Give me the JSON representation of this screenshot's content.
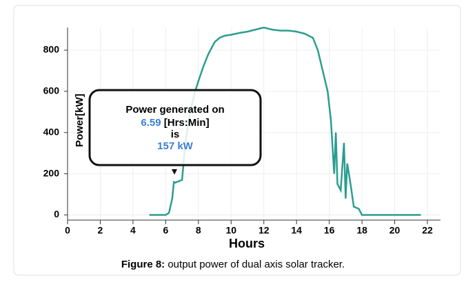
{
  "chart_data": {
    "type": "line",
    "x_label": "Hours",
    "y_label": "Power[kW]",
    "caption_bold": "Figure 8:",
    "caption": "output power of dual axis solar tracker.",
    "color": "#2a9d8f",
    "grid": true,
    "xlim": [
      0,
      22.8
    ],
    "ylim": [
      -25,
      910
    ],
    "xticks": [
      0,
      2,
      4,
      6,
      8,
      10,
      12,
      14,
      16,
      18,
      20,
      22
    ],
    "yticks": [
      0,
      200,
      400,
      600,
      800
    ],
    "x": [
      5,
      6,
      6.2,
      6.4,
      6.5,
      6.59,
      7,
      7.2,
      7.5,
      7.8,
      8,
      8.3,
      8.6,
      9,
      9.3,
      9.6,
      10,
      10.3,
      10.6,
      11,
      11.5,
      12,
      12.5,
      13,
      13.5,
      14,
      14.5,
      15,
      15.3,
      15.6,
      15.9,
      16.1,
      16.3,
      16.4,
      16.5,
      16.7,
      16.9,
      17,
      17.1,
      17.3,
      17.5,
      17.8,
      18,
      21.6
    ],
    "values": [
      0,
      0,
      10,
      80,
      160,
      157,
      170,
      350,
      500,
      600,
      650,
      720,
      780,
      840,
      860,
      870,
      875,
      880,
      885,
      890,
      900,
      910,
      900,
      895,
      895,
      890,
      880,
      860,
      800,
      700,
      600,
      460,
      200,
      400,
      150,
      120,
      350,
      80,
      250,
      150,
      40,
      30,
      0,
      0
    ],
    "annotation": {
      "line1": "Power generated on",
      "time": "6.59",
      "unit": "[Hrs:Min]",
      "line3": "is",
      "line4": "157 kW"
    }
  }
}
